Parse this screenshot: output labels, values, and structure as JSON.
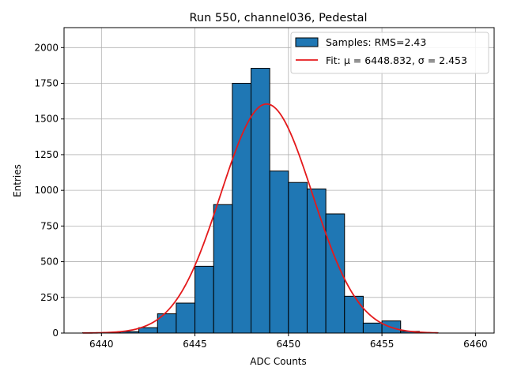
{
  "chart_data": {
    "type": "bar",
    "title": "Run 550, channel036, Pedestal",
    "xlabel": "ADC Counts",
    "ylabel": "Entries",
    "xlim": [
      6438.0,
      6461.0
    ],
    "ylim": [
      0,
      2140
    ],
    "xticks": [
      6440,
      6445,
      6450,
      6455,
      6460
    ],
    "yticks": [
      0,
      250,
      500,
      750,
      1000,
      1250,
      1500,
      1750,
      2000
    ],
    "grid": true,
    "legend_position": "top-right",
    "colors": {
      "bars": "#1f77b4",
      "bar_edge": "#000000",
      "fit": "#e41a1c",
      "grid": "#b0b0b0"
    },
    "histogram": {
      "name": "Samples: RMS=2.43",
      "bin_edges": [
        6439,
        6440,
        6441,
        6442,
        6443,
        6444,
        6445,
        6446,
        6447,
        6448,
        6449,
        6450,
        6451,
        6452,
        6453,
        6454,
        6455,
        6456,
        6457,
        6458
      ],
      "counts": [
        3,
        2,
        10,
        38,
        135,
        210,
        468,
        900,
        1750,
        1855,
        1135,
        1055,
        1010,
        835,
        258,
        70,
        85,
        12,
        2
      ]
    },
    "fit": {
      "name": "Fit: μ = 6448.832, σ = 2.453",
      "mu": 6448.832,
      "sigma": 2.453,
      "amplitude": 1605,
      "x_range": [
        6439,
        6458
      ]
    }
  }
}
